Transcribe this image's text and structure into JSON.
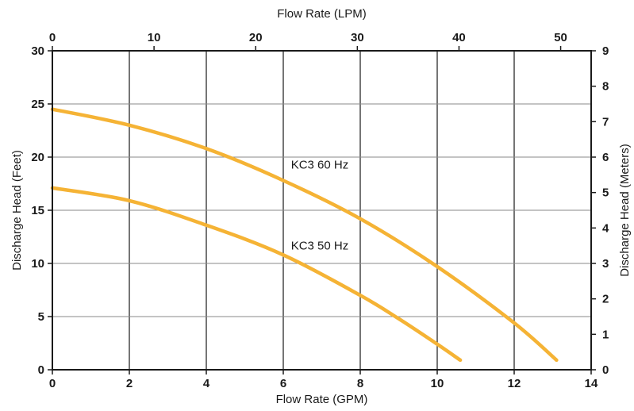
{
  "chart_data": {
    "type": "line",
    "title": "",
    "xlabel": "Flow Rate (GPM)",
    "ylabel": "Discharge Head (Feet)",
    "x2label": "Flow Rate (LPM)",
    "y2label": "Discharge Head (Meters)",
    "xlim": [
      0,
      14
    ],
    "ylim": [
      0,
      30
    ],
    "x2lim": [
      0,
      53
    ],
    "y2lim": [
      0,
      9
    ],
    "xticks": [
      "0",
      "2",
      "4",
      "6",
      "8",
      "10",
      "12",
      "14"
    ],
    "yticks": [
      "0",
      "5",
      "10",
      "15",
      "20",
      "25",
      "30"
    ],
    "x2ticks": [
      "0",
      "10",
      "20",
      "30",
      "40",
      "50"
    ],
    "y2ticks": [
      "0",
      "1",
      "2",
      "3",
      "4",
      "5",
      "6",
      "7",
      "8",
      "9"
    ],
    "grid": true,
    "line_color": "#f5b335",
    "series": [
      {
        "name": "KC3 60 Hz",
        "x": [
          0,
          2,
          4,
          6,
          8,
          10,
          12,
          13.1
        ],
        "y": [
          24.5,
          23.0,
          20.8,
          17.8,
          14.2,
          9.7,
          4.4,
          0.9
        ]
      },
      {
        "name": "KC3 50 Hz",
        "x": [
          0,
          2,
          4,
          6,
          8,
          9,
          10,
          10.6
        ],
        "y": [
          17.1,
          15.9,
          13.6,
          10.8,
          7.0,
          4.8,
          2.4,
          0.9
        ]
      }
    ]
  }
}
